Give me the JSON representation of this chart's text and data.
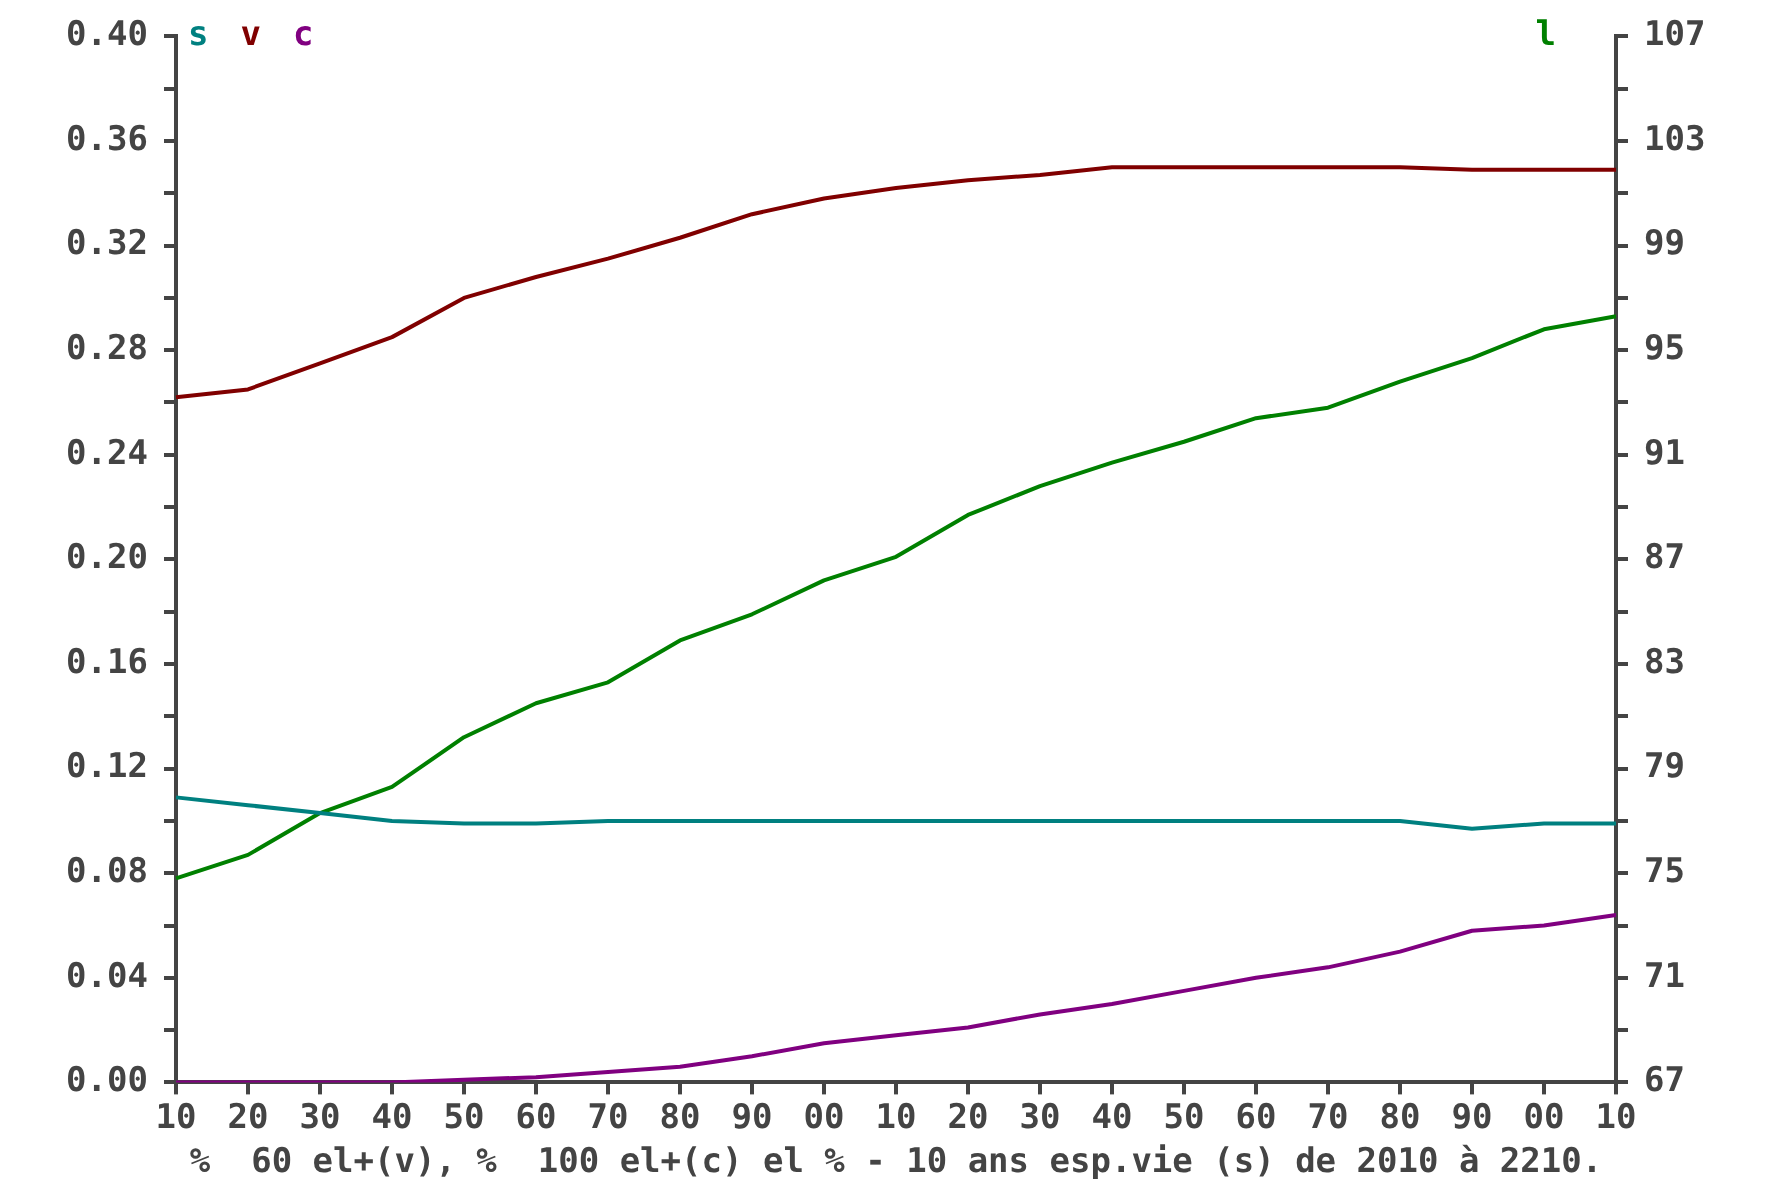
{
  "chart_data": {
    "type": "line",
    "xlabel": "%  60 el+(v), %  100 el+(c) el % - 10 ans esp.vie (s) de 2010 à 2210.",
    "categories": [
      "10",
      "20",
      "30",
      "40",
      "50",
      "60",
      "70",
      "80",
      "90",
      "00",
      "10",
      "20",
      "30",
      "40",
      "50",
      "60",
      "70",
      "80",
      "90",
      "00",
      "10"
    ],
    "series": [
      {
        "name": "s",
        "color": "#008080",
        "values": [
          0.109,
          0.106,
          0.103,
          0.1,
          0.099,
          0.099,
          0.1,
          0.1,
          0.1,
          0.1,
          0.1,
          0.1,
          0.1,
          0.1,
          0.1,
          0.1,
          0.1,
          0.1,
          0.097,
          0.099,
          0.099
        ]
      },
      {
        "name": "v",
        "color": "#800000",
        "values": [
          0.262,
          0.265,
          0.275,
          0.285,
          0.3,
          0.308,
          0.315,
          0.323,
          0.332,
          0.338,
          0.342,
          0.345,
          0.347,
          0.35,
          0.35,
          0.35,
          0.35,
          0.35,
          0.349,
          0.349,
          0.349
        ]
      },
      {
        "name": "c",
        "color": "#800080",
        "values": [
          0,
          0,
          0,
          0,
          0.001,
          0.002,
          0.004,
          0.006,
          0.01,
          0.015,
          0.018,
          0.021,
          0.026,
          0.03,
          0.035,
          0.04,
          0.044,
          0.05,
          0.058,
          0.06,
          0.064
        ]
      },
      {
        "name": "l",
        "color": "#008000",
        "axis": "y2",
        "values": [
          74.8,
          75.7,
          77.3,
          78.3,
          80.2,
          81.5,
          82.3,
          83.9,
          84.9,
          86.2,
          87.1,
          88.7,
          89.8,
          90.7,
          91.5,
          92.4,
          92.8,
          93.8,
          94.7,
          95.8,
          96.3
        ]
      }
    ],
    "ylim": [
      0,
      0.4
    ],
    "yticks": [
      {
        "value": 0,
        "label": "0.00"
      },
      {
        "value": 0.02,
        "label": null
      },
      {
        "value": 0.04,
        "label": "0.04"
      },
      {
        "value": 0.06,
        "label": null
      },
      {
        "value": 0.08,
        "label": "0.08"
      },
      {
        "value": 0.1,
        "label": null
      },
      {
        "value": 0.12,
        "label": "0.12"
      },
      {
        "value": 0.14,
        "label": null
      },
      {
        "value": 0.16,
        "label": "0.16"
      },
      {
        "value": 0.18,
        "label": null
      },
      {
        "value": 0.2,
        "label": "0.20"
      },
      {
        "value": 0.22,
        "label": null
      },
      {
        "value": 0.24,
        "label": "0.24"
      },
      {
        "value": 0.26,
        "label": null
      },
      {
        "value": 0.28,
        "label": "0.28"
      },
      {
        "value": 0.3,
        "label": null
      },
      {
        "value": 0.32,
        "label": "0.32"
      },
      {
        "value": 0.34,
        "label": null
      },
      {
        "value": 0.36,
        "label": "0.36"
      },
      {
        "value": 0.38,
        "label": null
      },
      {
        "value": 0.4,
        "label": "0.40"
      }
    ],
    "y2lim": [
      67,
      107
    ],
    "y2ticks": [
      67,
      {
        "value": 69,
        "label": null
      },
      71,
      {
        "value": 73,
        "label": null
      },
      75,
      {
        "value": 77,
        "label": null
      },
      79,
      {
        "value": 81,
        "label": null
      },
      83,
      {
        "value": 85,
        "label": null
      },
      87,
      {
        "value": 89,
        "label": null
      },
      91,
      {
        "value": 93,
        "label": null
      },
      95,
      {
        "value": 97,
        "label": null
      },
      99,
      {
        "value": 101,
        "label": null
      },
      103,
      {
        "value": 105,
        "label": null
      },
      107
    ],
    "grid": false,
    "legend": "top",
    "marker": "none",
    "line_style": "solid"
  }
}
